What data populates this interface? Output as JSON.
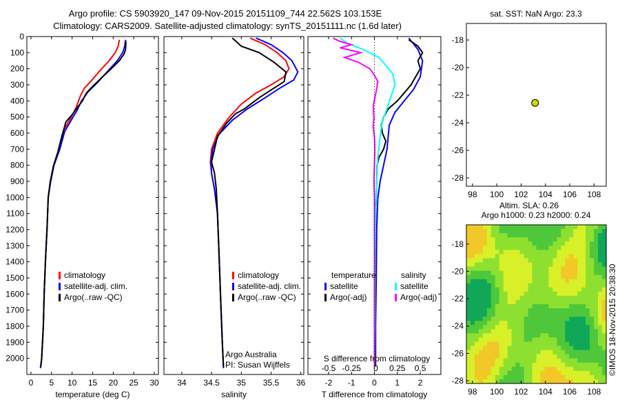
{
  "title_line1": "Argo profile: CS 5903920_147 09-Nov-2015 20151109_744 22.562S 103.153E",
  "title_line2": "Climatology: CARS2009. Satellite-adjusted climatology: synTS_20151111.nc (1.6d later)",
  "colors": {
    "climatology": "#ff0000",
    "satellite": "#0000ff",
    "argo": "#000000",
    "argo_salinity": "#ff00ff",
    "sat_salinity": "#00ffff"
  },
  "chart_data": [
    {
      "type": "line",
      "name": "temperature",
      "xlabel": "temperature (deg C)",
      "ylabel": "",
      "xlim": [
        -1,
        31
      ],
      "ylim": [
        2100,
        0
      ],
      "xticks": [
        0,
        5,
        10,
        15,
        20,
        25,
        30
      ],
      "yticks": [
        0,
        100,
        200,
        300,
        400,
        500,
        600,
        700,
        800,
        900,
        1000,
        1100,
        1200,
        1300,
        1400,
        1500,
        1600,
        1700,
        1800,
        1900,
        2000
      ],
      "legend": [
        "climatology",
        "satellite-adj. clim.",
        "Argo(..raw -QC)"
      ],
      "series": [
        {
          "name": "climatology",
          "color": "#ff0000",
          "points": [
            [
              21.5,
              20
            ],
            [
              21.2,
              60
            ],
            [
              20.5,
              100
            ],
            [
              19.0,
              150
            ],
            [
              16.5,
              220
            ],
            [
              14.5,
              280
            ],
            [
              13.0,
              320
            ],
            [
              12.0,
              370
            ],
            [
              11.0,
              440
            ],
            [
              9.8,
              500
            ],
            [
              8.0,
              580
            ],
            [
              6.8,
              700
            ],
            [
              5.5,
              800
            ],
            [
              4.7,
              900
            ],
            [
              4.2,
              1000
            ],
            [
              3.9,
              1200
            ],
            [
              3.5,
              1400
            ],
            [
              3.2,
              1600
            ],
            [
              3.0,
              1800
            ],
            [
              2.6,
              2000
            ],
            [
              2.3,
              2060
            ]
          ]
        },
        {
          "name": "satellite-adj. clim.",
          "color": "#0000ff",
          "points": [
            [
              23.0,
              20
            ],
            [
              22.8,
              60
            ],
            [
              22.3,
              100
            ],
            [
              21.0,
              150
            ],
            [
              18.5,
              220
            ],
            [
              16.0,
              290
            ],
            [
              14.0,
              340
            ],
            [
              12.3,
              400
            ],
            [
              11.2,
              460
            ],
            [
              10.0,
              510
            ],
            [
              8.2,
              590
            ],
            [
              7.0,
              700
            ],
            [
              5.6,
              800
            ],
            [
              4.8,
              900
            ],
            [
              4.2,
              1000
            ],
            [
              3.9,
              1200
            ],
            [
              3.5,
              1400
            ],
            [
              3.2,
              1600
            ],
            [
              3.0,
              1800
            ],
            [
              2.6,
              2000
            ],
            [
              2.3,
              2060
            ]
          ]
        },
        {
          "name": "Argo(..raw -QC)",
          "color": "#000000",
          "points": [
            [
              23.1,
              30
            ],
            [
              23.0,
              80
            ],
            [
              22.6,
              110
            ],
            [
              21.5,
              150
            ],
            [
              19.5,
              200
            ],
            [
              17.0,
              260
            ],
            [
              15.0,
              310
            ],
            [
              13.5,
              350
            ],
            [
              12.5,
              400
            ],
            [
              11.0,
              450
            ],
            [
              10.2,
              480
            ],
            [
              8.5,
              530
            ],
            [
              7.5,
              620
            ],
            [
              6.5,
              720
            ],
            [
              5.5,
              800
            ],
            [
              4.7,
              900
            ],
            [
              4.2,
              1000
            ],
            [
              3.9,
              1200
            ],
            [
              3.5,
              1400
            ],
            [
              3.2,
              1600
            ],
            [
              3.0,
              1800
            ],
            [
              2.6,
              2000
            ],
            [
              2.4,
              2050
            ]
          ]
        }
      ]
    },
    {
      "type": "line",
      "name": "salinity",
      "xlabel": "salinity",
      "xlim": [
        33.7,
        36.05
      ],
      "ylim": [
        2100,
        0
      ],
      "xticks": [
        34,
        34.5,
        35,
        35.5,
        36
      ],
      "legend": [
        "climatology",
        "satellite-adj. clim.",
        "Argo(..raw -QC)"
      ],
      "annotation": [
        "Argo Australia",
        "PI: Susan Wijffels"
      ],
      "series": [
        {
          "name": "climatology",
          "color": "#ff0000",
          "points": [
            [
              35.15,
              10
            ],
            [
              35.4,
              50
            ],
            [
              35.6,
              100
            ],
            [
              35.75,
              150
            ],
            [
              35.8,
              200
            ],
            [
              35.72,
              250
            ],
            [
              35.5,
              300
            ],
            [
              35.25,
              350
            ],
            [
              35.0,
              420
            ],
            [
              34.8,
              500
            ],
            [
              34.6,
              600
            ],
            [
              34.5,
              700
            ],
            [
              34.48,
              780
            ],
            [
              34.5,
              850
            ],
            [
              34.55,
              950
            ],
            [
              34.6,
              1100
            ],
            [
              34.62,
              1300
            ],
            [
              34.64,
              1500
            ],
            [
              34.66,
              1700
            ],
            [
              34.68,
              1900
            ],
            [
              34.7,
              2060
            ]
          ]
        },
        {
          "name": "satellite-adj. clim.",
          "color": "#0000ff",
          "points": [
            [
              35.25,
              10
            ],
            [
              35.5,
              50
            ],
            [
              35.7,
              100
            ],
            [
              35.85,
              150
            ],
            [
              35.95,
              220
            ],
            [
              35.88,
              270
            ],
            [
              35.65,
              320
            ],
            [
              35.4,
              380
            ],
            [
              35.1,
              450
            ],
            [
              34.85,
              520
            ],
            [
              34.62,
              610
            ],
            [
              34.52,
              700
            ],
            [
              34.49,
              780
            ],
            [
              34.5,
              850
            ],
            [
              34.55,
              950
            ],
            [
              34.6,
              1100
            ],
            [
              34.62,
              1300
            ],
            [
              34.64,
              1500
            ],
            [
              34.66,
              1700
            ],
            [
              34.68,
              1900
            ],
            [
              34.7,
              2060
            ]
          ]
        },
        {
          "name": "Argo(..raw -QC)",
          "color": "#000000",
          "points": [
            [
              34.85,
              10
            ],
            [
              35.0,
              60
            ],
            [
              35.3,
              100
            ],
            [
              35.55,
              160
            ],
            [
              35.75,
              220
            ],
            [
              35.72,
              280
            ],
            [
              35.55,
              320
            ],
            [
              35.3,
              380
            ],
            [
              35.05,
              450
            ],
            [
              34.9,
              480
            ],
            [
              34.75,
              540
            ],
            [
              34.6,
              620
            ],
            [
              34.55,
              700
            ],
            [
              34.5,
              780
            ],
            [
              34.55,
              850
            ],
            [
              34.58,
              950
            ],
            [
              34.6,
              1100
            ],
            [
              34.62,
              1300
            ],
            [
              34.64,
              1500
            ],
            [
              34.66,
              1700
            ],
            [
              34.68,
              1900
            ],
            [
              34.7,
              2050
            ]
          ]
        }
      ]
    },
    {
      "type": "line",
      "name": "difference",
      "xlabel": "T difference from climatology",
      "xlabel_top": "S difference from climatology",
      "xlim": [
        -2.9,
        2.9
      ],
      "ylim": [
        2100,
        0
      ],
      "xticks_T": [
        -2,
        -1,
        0,
        1,
        2
      ],
      "xticks_S": [
        "-0.5",
        "-0.25",
        "0",
        "0.25",
        "0.5"
      ],
      "legend_T": {
        "header": "temperature",
        "items": [
          "satellite",
          "Argo(-adj)"
        ]
      },
      "legend_S": {
        "header": "salinity",
        "items": [
          "satellite",
          "Argo(-adj)"
        ]
      },
      "series": [
        {
          "name": "temperature satellite",
          "color": "#0000ff",
          "points": [
            [
              1.5,
              10
            ],
            [
              1.9,
              80
            ],
            [
              2.1,
              150
            ],
            [
              2.0,
              250
            ],
            [
              1.7,
              330
            ],
            [
              1.3,
              400
            ],
            [
              0.9,
              470
            ],
            [
              0.65,
              550
            ],
            [
              0.6,
              620
            ],
            [
              0.55,
              700
            ],
            [
              0.4,
              800
            ],
            [
              0.25,
              900
            ],
            [
              0.15,
              1000
            ],
            [
              0.1,
              1200
            ],
            [
              0.08,
              1500
            ],
            [
              0.05,
              1800
            ],
            [
              0.05,
              2050
            ]
          ]
        },
        {
          "name": "temperature Argo(-adj)",
          "color": "#000000",
          "points": [
            [
              1.5,
              20
            ],
            [
              1.9,
              60
            ],
            [
              2.1,
              100
            ],
            [
              1.9,
              150
            ],
            [
              2.0,
              200
            ],
            [
              1.8,
              250
            ],
            [
              1.6,
              300
            ],
            [
              1.3,
              350
            ],
            [
              1.0,
              400
            ],
            [
              0.6,
              450
            ],
            [
              0.4,
              500
            ],
            [
              0.3,
              550
            ],
            [
              0.35,
              600
            ],
            [
              0.5,
              650
            ],
            [
              0.4,
              700
            ],
            [
              0.2,
              750
            ],
            [
              0.12,
              800
            ],
            [
              0.1,
              900
            ],
            [
              0.05,
              1100
            ],
            [
              0.05,
              1500
            ],
            [
              0.02,
              2050
            ]
          ]
        },
        {
          "name": "salinity satellite",
          "color": "#00ffff",
          "points": [
            [
              -1.5,
              10
            ],
            [
              -1.2,
              40
            ],
            [
              -0.5,
              80
            ],
            [
              0.2,
              130
            ],
            [
              0.5,
              180
            ],
            [
              0.8,
              230
            ],
            [
              0.9,
              300
            ],
            [
              0.7,
              380
            ],
            [
              0.55,
              450
            ],
            [
              0.35,
              520
            ],
            [
              0.25,
              620
            ],
            [
              0.15,
              750
            ],
            [
              0.1,
              900
            ],
            [
              0.05,
              1100
            ],
            [
              0.03,
              1400
            ],
            [
              0.02,
              1800
            ],
            [
              0.0,
              2050
            ]
          ]
        },
        {
          "name": "salinity Argo(-adj)",
          "color": "#ff00ff",
          "points": [
            [
              -1.8,
              10
            ],
            [
              -1.5,
              30
            ],
            [
              -1.0,
              50
            ],
            [
              -1.5,
              70
            ],
            [
              -0.6,
              100
            ],
            [
              -1.3,
              130
            ],
            [
              -0.7,
              160
            ],
            [
              -0.2,
              200
            ],
            [
              0.0,
              240
            ],
            [
              0.15,
              280
            ],
            [
              0.05,
              360
            ],
            [
              -0.05,
              430
            ],
            [
              -0.02,
              500
            ],
            [
              -0.05,
              560
            ],
            [
              0.0,
              620
            ],
            [
              0.02,
              700
            ],
            [
              0.0,
              800
            ],
            [
              -0.02,
              900
            ],
            [
              0.0,
              1000
            ],
            [
              0.0,
              1500
            ],
            [
              0.0,
              2050
            ]
          ]
        }
      ]
    },
    {
      "type": "scatter",
      "name": "position",
      "title": "sat. SST: NaN Argo: 23.3",
      "xlim": [
        97.5,
        109
      ],
      "ylim": [
        -28.6,
        -16.8
      ],
      "xticks": [
        98,
        100,
        102,
        104,
        106,
        108
      ],
      "yticks": [
        -18,
        -20,
        -22,
        -24,
        -26,
        -28
      ],
      "points": [
        [
          103.15,
          -22.56
        ]
      ],
      "marker_color": "#d4d40a"
    },
    {
      "type": "heatmap",
      "name": "sla-map",
      "title_line1": "Altim. SLA: 0.26",
      "title_line2": "Argo h1000: 0.23 h2000: 0.24",
      "xlim": [
        97.5,
        109
      ],
      "ylim": [
        -28.2,
        -16.6
      ],
      "xticks": [
        98,
        100,
        102,
        104,
        106,
        108
      ],
      "yticks": [
        -18,
        -20,
        -22,
        -24,
        -26,
        -28
      ],
      "colormap": [
        "#10a858",
        "#4ec83a",
        "#8ee030",
        "#d8f028",
        "#f2c828"
      ]
    }
  ],
  "side_text": "©IMOS 18-Nov-2015 20:38:30"
}
